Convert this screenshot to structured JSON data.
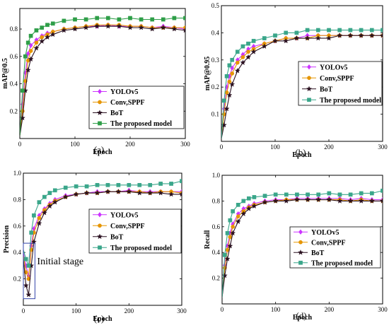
{
  "chart_data": [
    {
      "type": "line",
      "caption": "(a)",
      "xlabel": "Epoch",
      "ylabel": "mAP@0.5",
      "xlim": [
        0,
        300
      ],
      "ylim": [
        0,
        0.95
      ],
      "xticks": [
        0,
        100,
        200,
        300
      ],
      "xtick_labels": [
        "0",
        "100",
        "200",
        "300"
      ],
      "yticks": [
        0.2,
        0.4,
        0.6,
        0.8
      ],
      "ytick_labels": [
        "0.2",
        "0.4",
        "0.6",
        "0.8"
      ],
      "legend_position": "bottom-right",
      "series": [
        {
          "name": "YOLOv5",
          "color": "#cc33ff",
          "marker": "diamond",
          "x": [
            0,
            5,
            10,
            15,
            20,
            30,
            40,
            50,
            60,
            80,
            100,
            120,
            140,
            160,
            180,
            200,
            220,
            240,
            260,
            280,
            300
          ],
          "y": [
            0.02,
            0.25,
            0.48,
            0.62,
            0.68,
            0.72,
            0.75,
            0.77,
            0.78,
            0.8,
            0.81,
            0.82,
            0.82,
            0.83,
            0.82,
            0.82,
            0.82,
            0.81,
            0.82,
            0.81,
            0.8
          ]
        },
        {
          "name": "Conv,SPPF",
          "color": "#e69500",
          "marker": "circle",
          "x": [
            0,
            5,
            10,
            15,
            20,
            30,
            40,
            50,
            60,
            80,
            100,
            120,
            140,
            160,
            180,
            200,
            220,
            240,
            260,
            280,
            300
          ],
          "y": [
            0.02,
            0.2,
            0.42,
            0.57,
            0.64,
            0.7,
            0.74,
            0.76,
            0.78,
            0.8,
            0.81,
            0.82,
            0.83,
            0.83,
            0.83,
            0.82,
            0.82,
            0.81,
            0.81,
            0.81,
            0.81
          ]
        },
        {
          "name": "BoT",
          "color": "#2a1020",
          "marker": "star",
          "x": [
            0,
            5,
            10,
            15,
            20,
            30,
            40,
            50,
            60,
            80,
            100,
            120,
            140,
            160,
            180,
            200,
            220,
            240,
            260,
            280,
            300
          ],
          "y": [
            0.02,
            0.15,
            0.35,
            0.5,
            0.58,
            0.66,
            0.71,
            0.74,
            0.76,
            0.79,
            0.8,
            0.81,
            0.82,
            0.82,
            0.82,
            0.81,
            0.81,
            0.8,
            0.81,
            0.8,
            0.79
          ]
        },
        {
          "name": "The proposed model",
          "color": "#2e9e48",
          "marker": "square",
          "x": [
            0,
            5,
            10,
            15,
            20,
            30,
            40,
            50,
            60,
            80,
            100,
            120,
            140,
            160,
            180,
            200,
            220,
            240,
            260,
            280,
            300
          ],
          "y": [
            0.02,
            0.35,
            0.6,
            0.7,
            0.75,
            0.79,
            0.81,
            0.83,
            0.84,
            0.86,
            0.87,
            0.87,
            0.88,
            0.88,
            0.87,
            0.88,
            0.87,
            0.87,
            0.87,
            0.88,
            0.88
          ]
        }
      ]
    },
    {
      "type": "line",
      "caption": "(b)",
      "xlabel": "Epoch",
      "ylabel": "mAP@0.95",
      "xlim": [
        0,
        300
      ],
      "ylim": [
        0,
        0.5
      ],
      "xticks": [
        0,
        100,
        200,
        300
      ],
      "xtick_labels": [
        "0",
        "100",
        "200",
        "300"
      ],
      "yticks": [
        0.1,
        0.2,
        0.3,
        0.4,
        0.5
      ],
      "ytick_labels": [
        "0.1",
        "0.2",
        "0.3",
        "0.4",
        "0.5"
      ],
      "legend_position": "center-right",
      "series": [
        {
          "name": "YOLOv5",
          "color": "#cc33ff",
          "marker": "diamond",
          "x": [
            0,
            5,
            10,
            15,
            20,
            30,
            40,
            50,
            60,
            80,
            100,
            120,
            140,
            160,
            180,
            200,
            220,
            240,
            260,
            280,
            300
          ],
          "y": [
            0.01,
            0.12,
            0.2,
            0.24,
            0.27,
            0.3,
            0.32,
            0.34,
            0.35,
            0.36,
            0.37,
            0.38,
            0.38,
            0.39,
            0.39,
            0.39,
            0.39,
            0.39,
            0.39,
            0.39,
            0.39
          ]
        },
        {
          "name": "Conv,SPPF",
          "color": "#e69500",
          "marker": "circle",
          "x": [
            0,
            5,
            10,
            15,
            20,
            30,
            40,
            50,
            60,
            80,
            100,
            120,
            140,
            160,
            180,
            200,
            220,
            240,
            260,
            280,
            300
          ],
          "y": [
            0.01,
            0.1,
            0.18,
            0.22,
            0.25,
            0.29,
            0.31,
            0.33,
            0.34,
            0.36,
            0.37,
            0.38,
            0.38,
            0.38,
            0.39,
            0.39,
            0.39,
            0.39,
            0.39,
            0.39,
            0.39
          ]
        },
        {
          "name": "BoT",
          "color": "#2a1020",
          "marker": "star",
          "x": [
            0,
            5,
            10,
            15,
            20,
            30,
            40,
            50,
            60,
            80,
            100,
            120,
            140,
            160,
            180,
            200,
            220,
            240,
            260,
            280,
            300
          ],
          "y": [
            0.01,
            0.06,
            0.12,
            0.17,
            0.21,
            0.26,
            0.29,
            0.31,
            0.33,
            0.35,
            0.37,
            0.37,
            0.38,
            0.38,
            0.38,
            0.38,
            0.39,
            0.39,
            0.39,
            0.39,
            0.39
          ]
        },
        {
          "name": "The proposed model",
          "color": "#3aa68a",
          "marker": "square",
          "x": [
            0,
            5,
            10,
            15,
            20,
            30,
            40,
            50,
            60,
            80,
            100,
            120,
            140,
            160,
            180,
            200,
            220,
            240,
            260,
            280,
            300
          ],
          "y": [
            0.01,
            0.15,
            0.24,
            0.28,
            0.3,
            0.33,
            0.35,
            0.36,
            0.37,
            0.38,
            0.39,
            0.4,
            0.4,
            0.41,
            0.41,
            0.41,
            0.41,
            0.41,
            0.41,
            0.41,
            0.41
          ]
        }
      ]
    },
    {
      "type": "line",
      "caption": "(c)",
      "xlabel": "Epoch",
      "ylabel": "Precision",
      "xlim": [
        0,
        300
      ],
      "ylim": [
        0,
        1.0
      ],
      "xticks": [
        0,
        100,
        200,
        300
      ],
      "xtick_labels": [
        "0",
        "100",
        "200",
        "300"
      ],
      "yticks": [
        0.2,
        0.4,
        0.6,
        0.8,
        1.0
      ],
      "ytick_labels": [
        "0.2",
        "0.4",
        "0.6",
        "0.8",
        "1.0"
      ],
      "legend_position": "center-right",
      "annotation": {
        "text": "Initial stage",
        "x_range": [
          0,
          22
        ],
        "y_range": [
          0.05,
          0.47
        ]
      },
      "series": [
        {
          "name": "YOLOv5",
          "color": "#cc33ff",
          "marker": "diamond",
          "x": [
            0,
            5,
            10,
            15,
            20,
            30,
            40,
            50,
            60,
            80,
            100,
            120,
            140,
            160,
            180,
            200,
            220,
            240,
            260,
            280,
            300
          ],
          "y": [
            0.4,
            0.3,
            0.22,
            0.45,
            0.58,
            0.68,
            0.73,
            0.77,
            0.8,
            0.83,
            0.84,
            0.85,
            0.86,
            0.86,
            0.86,
            0.87,
            0.86,
            0.86,
            0.86,
            0.86,
            0.86
          ]
        },
        {
          "name": "Conv,SPPF",
          "color": "#e69500",
          "marker": "circle",
          "x": [
            0,
            5,
            10,
            15,
            20,
            30,
            40,
            50,
            60,
            80,
            100,
            120,
            140,
            160,
            180,
            200,
            220,
            240,
            260,
            280,
            300
          ],
          "y": [
            0.38,
            0.25,
            0.2,
            0.42,
            0.55,
            0.66,
            0.72,
            0.76,
            0.79,
            0.82,
            0.84,
            0.85,
            0.85,
            0.86,
            0.86,
            0.86,
            0.86,
            0.85,
            0.86,
            0.86,
            0.85
          ]
        },
        {
          "name": "BoT",
          "color": "#2a1020",
          "marker": "star",
          "x": [
            0,
            5,
            10,
            15,
            20,
            30,
            40,
            50,
            60,
            80,
            100,
            120,
            140,
            160,
            180,
            200,
            220,
            240,
            260,
            280,
            300
          ],
          "y": [
            0.35,
            0.15,
            0.08,
            0.3,
            0.48,
            0.62,
            0.7,
            0.75,
            0.78,
            0.82,
            0.84,
            0.85,
            0.85,
            0.86,
            0.86,
            0.86,
            0.85,
            0.85,
            0.85,
            0.84,
            0.84
          ]
        },
        {
          "name": "The proposed model",
          "color": "#3aa68a",
          "marker": "square",
          "x": [
            0,
            5,
            10,
            15,
            20,
            30,
            40,
            50,
            60,
            80,
            100,
            120,
            140,
            160,
            180,
            200,
            220,
            240,
            260,
            280,
            300
          ],
          "y": [
            0.42,
            0.35,
            0.3,
            0.55,
            0.68,
            0.78,
            0.82,
            0.85,
            0.87,
            0.89,
            0.9,
            0.9,
            0.91,
            0.91,
            0.91,
            0.91,
            0.91,
            0.91,
            0.92,
            0.92,
            0.94
          ]
        }
      ]
    },
    {
      "type": "line",
      "caption": "(d)",
      "xlabel": "Epoch",
      "ylabel": "Recall",
      "xlim": [
        0,
        300
      ],
      "ylim": [
        0,
        1.0
      ],
      "xticks": [
        0,
        100,
        200,
        300
      ],
      "xtick_labels": [
        "0",
        "100",
        "200",
        "300"
      ],
      "yticks": [
        0.2,
        0.4,
        0.6,
        0.8,
        1.0
      ],
      "ytick_labels": [
        "0.2",
        "0.4",
        "0.6",
        "0.8",
        "1.0"
      ],
      "legend_position": "center-right",
      "series": [
        {
          "name": "YOLOv5",
          "color": "#cc33ff",
          "marker": "diamond",
          "x": [
            0,
            5,
            10,
            15,
            20,
            30,
            40,
            50,
            60,
            80,
            100,
            120,
            140,
            160,
            180,
            200,
            220,
            240,
            260,
            280,
            300
          ],
          "y": [
            0.05,
            0.3,
            0.45,
            0.55,
            0.62,
            0.7,
            0.74,
            0.76,
            0.78,
            0.8,
            0.81,
            0.81,
            0.82,
            0.82,
            0.82,
            0.82,
            0.82,
            0.81,
            0.82,
            0.81,
            0.81
          ]
        },
        {
          "name": "Conv,SPPF",
          "color": "#e69500",
          "marker": "circle",
          "x": [
            0,
            5,
            10,
            15,
            20,
            30,
            40,
            50,
            60,
            80,
            100,
            120,
            140,
            160,
            180,
            200,
            220,
            240,
            260,
            280,
            300
          ],
          "y": [
            0.05,
            0.28,
            0.42,
            0.52,
            0.6,
            0.68,
            0.72,
            0.75,
            0.77,
            0.79,
            0.8,
            0.81,
            0.81,
            0.81,
            0.81,
            0.81,
            0.81,
            0.8,
            0.81,
            0.8,
            0.8
          ]
        },
        {
          "name": "BoT",
          "color": "#2a1020",
          "marker": "star",
          "x": [
            0,
            5,
            10,
            15,
            20,
            30,
            40,
            50,
            60,
            80,
            100,
            120,
            140,
            160,
            180,
            200,
            220,
            240,
            260,
            280,
            300
          ],
          "y": [
            0.05,
            0.22,
            0.35,
            0.45,
            0.55,
            0.64,
            0.7,
            0.74,
            0.76,
            0.79,
            0.8,
            0.8,
            0.81,
            0.81,
            0.81,
            0.81,
            0.8,
            0.8,
            0.8,
            0.8,
            0.8
          ]
        },
        {
          "name": "The proposed model",
          "color": "#3aa68a",
          "marker": "square",
          "x": [
            0,
            5,
            10,
            15,
            20,
            30,
            40,
            50,
            60,
            80,
            100,
            120,
            140,
            160,
            180,
            200,
            220,
            240,
            260,
            280,
            300
          ],
          "y": [
            0.05,
            0.38,
            0.55,
            0.65,
            0.72,
            0.77,
            0.8,
            0.82,
            0.83,
            0.84,
            0.85,
            0.85,
            0.85,
            0.85,
            0.85,
            0.86,
            0.85,
            0.85,
            0.86,
            0.86,
            0.88
          ]
        }
      ]
    }
  ]
}
